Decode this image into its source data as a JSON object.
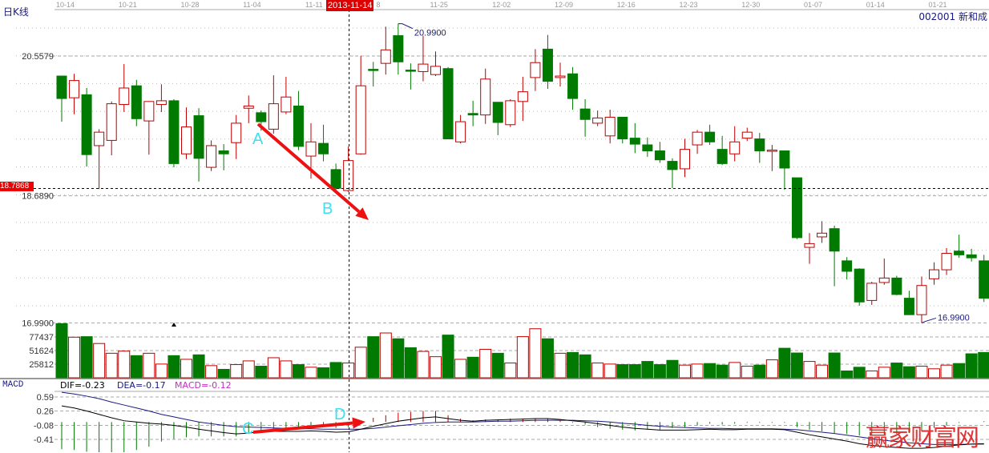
{
  "header": {
    "title": "日K线",
    "stock": "002001 新和成",
    "crosshair_date": "2013-11-14",
    "crosshair_price": "18.7868"
  },
  "macd_legend": {
    "name": "MACD",
    "dif": "DIF=-0.23",
    "dea": "DEA=-0.17",
    "macd": "MACD=-0.12"
  },
  "annotations": {
    "a": "A",
    "b": "B",
    "c": "C",
    "d": "D"
  },
  "watermark": "赢家财富网",
  "colors": {
    "up": "#c00000",
    "down": "#007a00",
    "dea": "#1a1a80",
    "dif": "#000000",
    "arrow": "#ee1111",
    "marker_text": "#1a1a80"
  },
  "chart_data": {
    "type": "candlestick",
    "price_axis": {
      "labels": [
        "20.5579",
        "18.6890",
        "16.9900"
      ],
      "values": [
        20.5579,
        18.689,
        16.99
      ]
    },
    "volume_axis": {
      "labels": [
        "77437",
        "51624",
        "25812"
      ],
      "values": [
        77437,
        51624,
        25812
      ]
    },
    "macd_axis": {
      "labels": [
        "0.59",
        "0.26",
        "-0.08",
        "-0.41"
      ],
      "values": [
        0.59,
        0.26,
        -0.08,
        -0.41
      ]
    },
    "x_ticks": [
      {
        "label": "10-14",
        "candle": 0
      },
      {
        "label": "10-21",
        "candle": 5
      },
      {
        "label": "10-28",
        "candle": 10
      },
      {
        "label": "11-04",
        "candle": 15
      },
      {
        "label": "11-11",
        "candle": 20
      },
      {
        "label": "8",
        "candle": 25
      },
      {
        "label": "11-25",
        "candle": 30
      },
      {
        "label": "12-02",
        "candle": 35
      },
      {
        "label": "12-09",
        "candle": 40
      },
      {
        "label": "12-16",
        "candle": 45
      },
      {
        "label": "12-23",
        "candle": 50
      },
      {
        "label": "12-30",
        "candle": 55
      },
      {
        "label": "01-07",
        "candle": 60
      },
      {
        "label": "01-14",
        "candle": 65
      },
      {
        "label": "01-21",
        "candle": 70
      }
    ],
    "high_marker": {
      "label": "20.9900",
      "candle": 27
    },
    "low_marker": {
      "label": "16.9900",
      "candle": 69
    },
    "crosshair_candle": 23,
    "crosshair_price": 18.7868,
    "ohlc": [
      [
        20.29,
        20.29,
        19.68,
        19.99
      ],
      [
        20.0,
        20.32,
        19.78,
        20.23
      ],
      [
        20.04,
        20.13,
        19.08,
        19.24
      ],
      [
        19.36,
        19.58,
        18.78,
        19.54
      ],
      [
        19.43,
        19.95,
        19.23,
        19.92
      ],
      [
        19.91,
        20.45,
        19.81,
        20.13
      ],
      [
        20.16,
        20.24,
        19.62,
        19.72
      ],
      [
        19.69,
        19.95,
        19.24,
        19.95
      ],
      [
        19.91,
        20.18,
        19.81,
        19.96
      ],
      [
        19.96,
        19.98,
        19.07,
        19.12
      ],
      [
        19.25,
        19.87,
        19.18,
        19.61
      ],
      [
        19.76,
        19.86,
        18.88,
        19.19
      ],
      [
        19.07,
        19.43,
        19.02,
        19.36
      ],
      [
        19.29,
        19.38,
        19.03,
        19.25
      ],
      [
        19.4,
        19.77,
        19.18,
        19.66
      ],
      [
        19.86,
        20.03,
        19.66,
        19.89
      ],
      [
        19.8,
        19.83,
        19.56,
        19.68
      ],
      [
        19.58,
        20.3,
        19.52,
        19.92
      ],
      [
        19.81,
        20.28,
        19.78,
        20.01
      ],
      [
        19.89,
        20.09,
        19.3,
        19.35
      ],
      [
        19.22,
        19.66,
        18.92,
        19.41
      ],
      [
        19.39,
        19.64,
        19.15,
        19.25
      ],
      [
        19.04,
        19.12,
        18.77,
        18.79
      ],
      [
        18.76,
        19.35,
        18.74,
        19.16
      ],
      [
        19.25,
        20.56,
        19.24,
        20.16
      ],
      [
        20.38,
        20.48,
        20.15,
        20.37
      ],
      [
        20.46,
        20.95,
        20.31,
        20.64
      ],
      [
        20.83,
        20.99,
        20.31,
        20.48
      ],
      [
        20.37,
        20.46,
        20.11,
        20.36
      ],
      [
        20.35,
        20.83,
        20.22,
        20.45
      ],
      [
        20.31,
        20.62,
        20.29,
        20.42
      ],
      [
        20.39,
        20.41,
        19.45,
        19.45
      ],
      [
        19.41,
        19.77,
        19.39,
        19.68
      ],
      [
        19.79,
        19.96,
        19.62,
        19.77
      ],
      [
        19.77,
        20.39,
        19.65,
        20.25
      ],
      [
        19.94,
        19.94,
        19.5,
        19.67
      ],
      [
        19.64,
        19.98,
        19.61,
        19.96
      ],
      [
        19.95,
        20.28,
        19.69,
        20.08
      ],
      [
        20.27,
        20.65,
        20.09,
        20.47
      ],
      [
        20.65,
        20.84,
        20.12,
        20.22
      ],
      [
        20.27,
        20.47,
        20.15,
        20.29
      ],
      [
        20.32,
        20.41,
        19.84,
        19.99
      ],
      [
        19.85,
        19.98,
        19.48,
        19.71
      ],
      [
        19.66,
        19.83,
        19.62,
        19.73
      ],
      [
        19.49,
        19.84,
        19.39,
        19.74
      ],
      [
        19.74,
        19.74,
        19.39,
        19.45
      ],
      [
        19.46,
        19.66,
        19.26,
        19.38
      ],
      [
        19.37,
        19.47,
        19.21,
        19.29
      ],
      [
        19.29,
        19.41,
        19.13,
        19.17
      ],
      [
        19.15,
        19.19,
        18.79,
        19.04
      ],
      [
        19.05,
        19.45,
        18.94,
        19.31
      ],
      [
        19.37,
        19.57,
        19.25,
        19.54
      ],
      [
        19.54,
        19.64,
        19.37,
        19.41
      ],
      [
        19.31,
        19.49,
        19.1,
        19.12
      ],
      [
        19.25,
        19.62,
        19.15,
        19.41
      ],
      [
        19.46,
        19.6,
        19.42,
        19.54
      ],
      [
        19.45,
        19.53,
        19.13,
        19.29
      ],
      [
        19.29,
        19.37,
        19.02,
        19.3
      ],
      [
        19.29,
        19.29,
        18.77,
        19.06
      ],
      [
        18.93,
        18.93,
        18.11,
        18.13
      ],
      [
        18.0,
        18.19,
        17.78,
        18.05
      ],
      [
        18.14,
        18.35,
        18.06,
        18.19
      ],
      [
        18.25,
        18.29,
        17.48,
        17.95
      ],
      [
        17.82,
        17.87,
        17.57,
        17.68
      ],
      [
        17.71,
        17.72,
        17.22,
        17.27
      ],
      [
        17.29,
        17.54,
        17.23,
        17.52
      ],
      [
        17.53,
        17.85,
        17.5,
        17.59
      ],
      [
        17.59,
        17.62,
        17.36,
        17.37
      ],
      [
        17.32,
        17.42,
        17.1,
        17.1
      ],
      [
        17.1,
        17.61,
        16.99,
        17.49
      ],
      [
        17.58,
        17.8,
        17.5,
        17.7
      ],
      [
        17.7,
        17.99,
        17.63,
        17.92
      ],
      [
        17.95,
        18.17,
        17.86,
        17.9
      ],
      [
        17.9,
        17.98,
        17.81,
        17.86
      ],
      [
        17.82,
        17.9,
        17.27,
        17.32
      ]
    ],
    "volume": [
      102700,
      77000,
      78000,
      65000,
      46500,
      50600,
      42000,
      46500,
      26000,
      42000,
      35000,
      43500,
      23000,
      16000,
      25000,
      32000,
      22000,
      38000,
      32000,
      25000,
      20000,
      19000,
      29000,
      28000,
      58000,
      78000,
      85000,
      74000,
      57000,
      50000,
      40000,
      81000,
      35000,
      39000,
      54000,
      46500,
      28000,
      78000,
      93000,
      74000,
      46500,
      48000,
      43500,
      28000,
      26000,
      25000,
      25000,
      31000,
      25000,
      33000,
      24000,
      26000,
      27000,
      24000,
      29000,
      22000,
      24000,
      34000,
      56000,
      47000,
      31000,
      24000,
      47000,
      13000,
      20000,
      13000,
      20000,
      28000,
      21000,
      22000,
      17000,
      24000,
      27000,
      45500,
      48000
    ],
    "dif": [
      0.38,
      0.33,
      0.26,
      0.18,
      0.1,
      0.03,
      0.0,
      -0.03,
      -0.05,
      -0.08,
      -0.12,
      -0.17,
      -0.21,
      -0.25,
      -0.28,
      -0.26,
      -0.23,
      -0.22,
      -0.22,
      -0.22,
      -0.21,
      -0.22,
      -0.24,
      -0.23,
      -0.17,
      -0.1,
      -0.04,
      0.02,
      0.06,
      0.1,
      0.12,
      0.08,
      0.04,
      0.02,
      0.04,
      0.05,
      0.06,
      0.07,
      0.08,
      0.08,
      0.06,
      0.03,
      0.0,
      -0.04,
      -0.08,
      -0.12,
      -0.15,
      -0.17,
      -0.19,
      -0.19,
      -0.19,
      -0.18,
      -0.17,
      -0.18,
      -0.18,
      -0.17,
      -0.17,
      -0.17,
      -0.18,
      -0.24,
      -0.3,
      -0.35,
      -0.4,
      -0.45,
      -0.51,
      -0.55,
      -0.58,
      -0.6,
      -0.62,
      -0.62,
      -0.6,
      -0.57,
      -0.54,
      -0.52,
      -0.51
    ],
    "dea": [
      0.7,
      0.66,
      0.61,
      0.55,
      0.47,
      0.4,
      0.33,
      0.26,
      0.18,
      0.12,
      0.06,
      0.0,
      -0.04,
      -0.08,
      -0.11,
      -0.12,
      -0.13,
      -0.14,
      -0.15,
      -0.16,
      -0.16,
      -0.17,
      -0.17,
      -0.17,
      -0.17,
      -0.15,
      -0.12,
      -0.09,
      -0.06,
      -0.03,
      -0.01,
      0.0,
      0.0,
      0.0,
      0.01,
      0.02,
      0.02,
      0.03,
      0.04,
      0.04,
      0.04,
      0.04,
      0.03,
      0.02,
      0.0,
      -0.03,
      -0.05,
      -0.08,
      -0.1,
      -0.12,
      -0.13,
      -0.14,
      -0.15,
      -0.15,
      -0.16,
      -0.16,
      -0.16,
      -0.16,
      -0.17,
      -0.18,
      -0.21,
      -0.24,
      -0.27,
      -0.31,
      -0.35,
      -0.39,
      -0.43,
      -0.46,
      -0.49,
      -0.51,
      -0.53,
      -0.53,
      -0.53,
      -0.52,
      -0.52
    ]
  }
}
